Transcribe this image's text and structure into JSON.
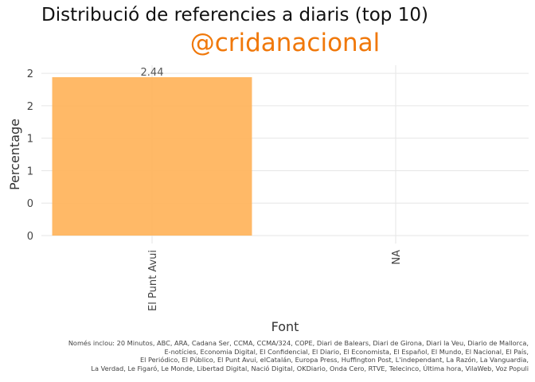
{
  "title": "Distribució de referencies a diaris (top 10)",
  "subtitle": "@cridanacional",
  "chart_data": {
    "type": "bar",
    "categories": [
      "El Punt Avui",
      "NA"
    ],
    "values": [
      2.44,
      null
    ],
    "data_labels": [
      "2.44",
      ""
    ],
    "xlabel": "Font",
    "ylabel": "Percentage",
    "ylim": [
      0,
      2.75
    ],
    "yticks": [
      0,
      0.5,
      1,
      1.5,
      2,
      2.5
    ],
    "ytick_labels": [
      "0",
      "0",
      "1",
      "1",
      "2",
      "2"
    ],
    "grid": true,
    "legend": "none",
    "bar_color": "#ffb55f"
  },
  "footnote": {
    "lines": [
      "Només inclou: 20 Minutos, ABC, ARA, Cadana Ser, CCMA, CCMA/324, COPE, Diari de Balears, Diari de Girona, Diari la Veu, Diario de Mallorca,",
      "E-notícies, Economia Digital, El Confidencial, El Diario, El Economista, El Español, El Mundo, El Nacional, El País,",
      "El Periódico, El Público, El Punt Avui, elCatalán, Europa Press, Huffington Post, L'independant, La Razón, La Vanguardia,",
      "La Verdad, Le Figaró, Le Monde, Libertad Digital, Nació Digital, OKDiario, Onda Cero, RTVE, Telecinco, Última hora, VilaWeb, Voz Populi"
    ]
  }
}
